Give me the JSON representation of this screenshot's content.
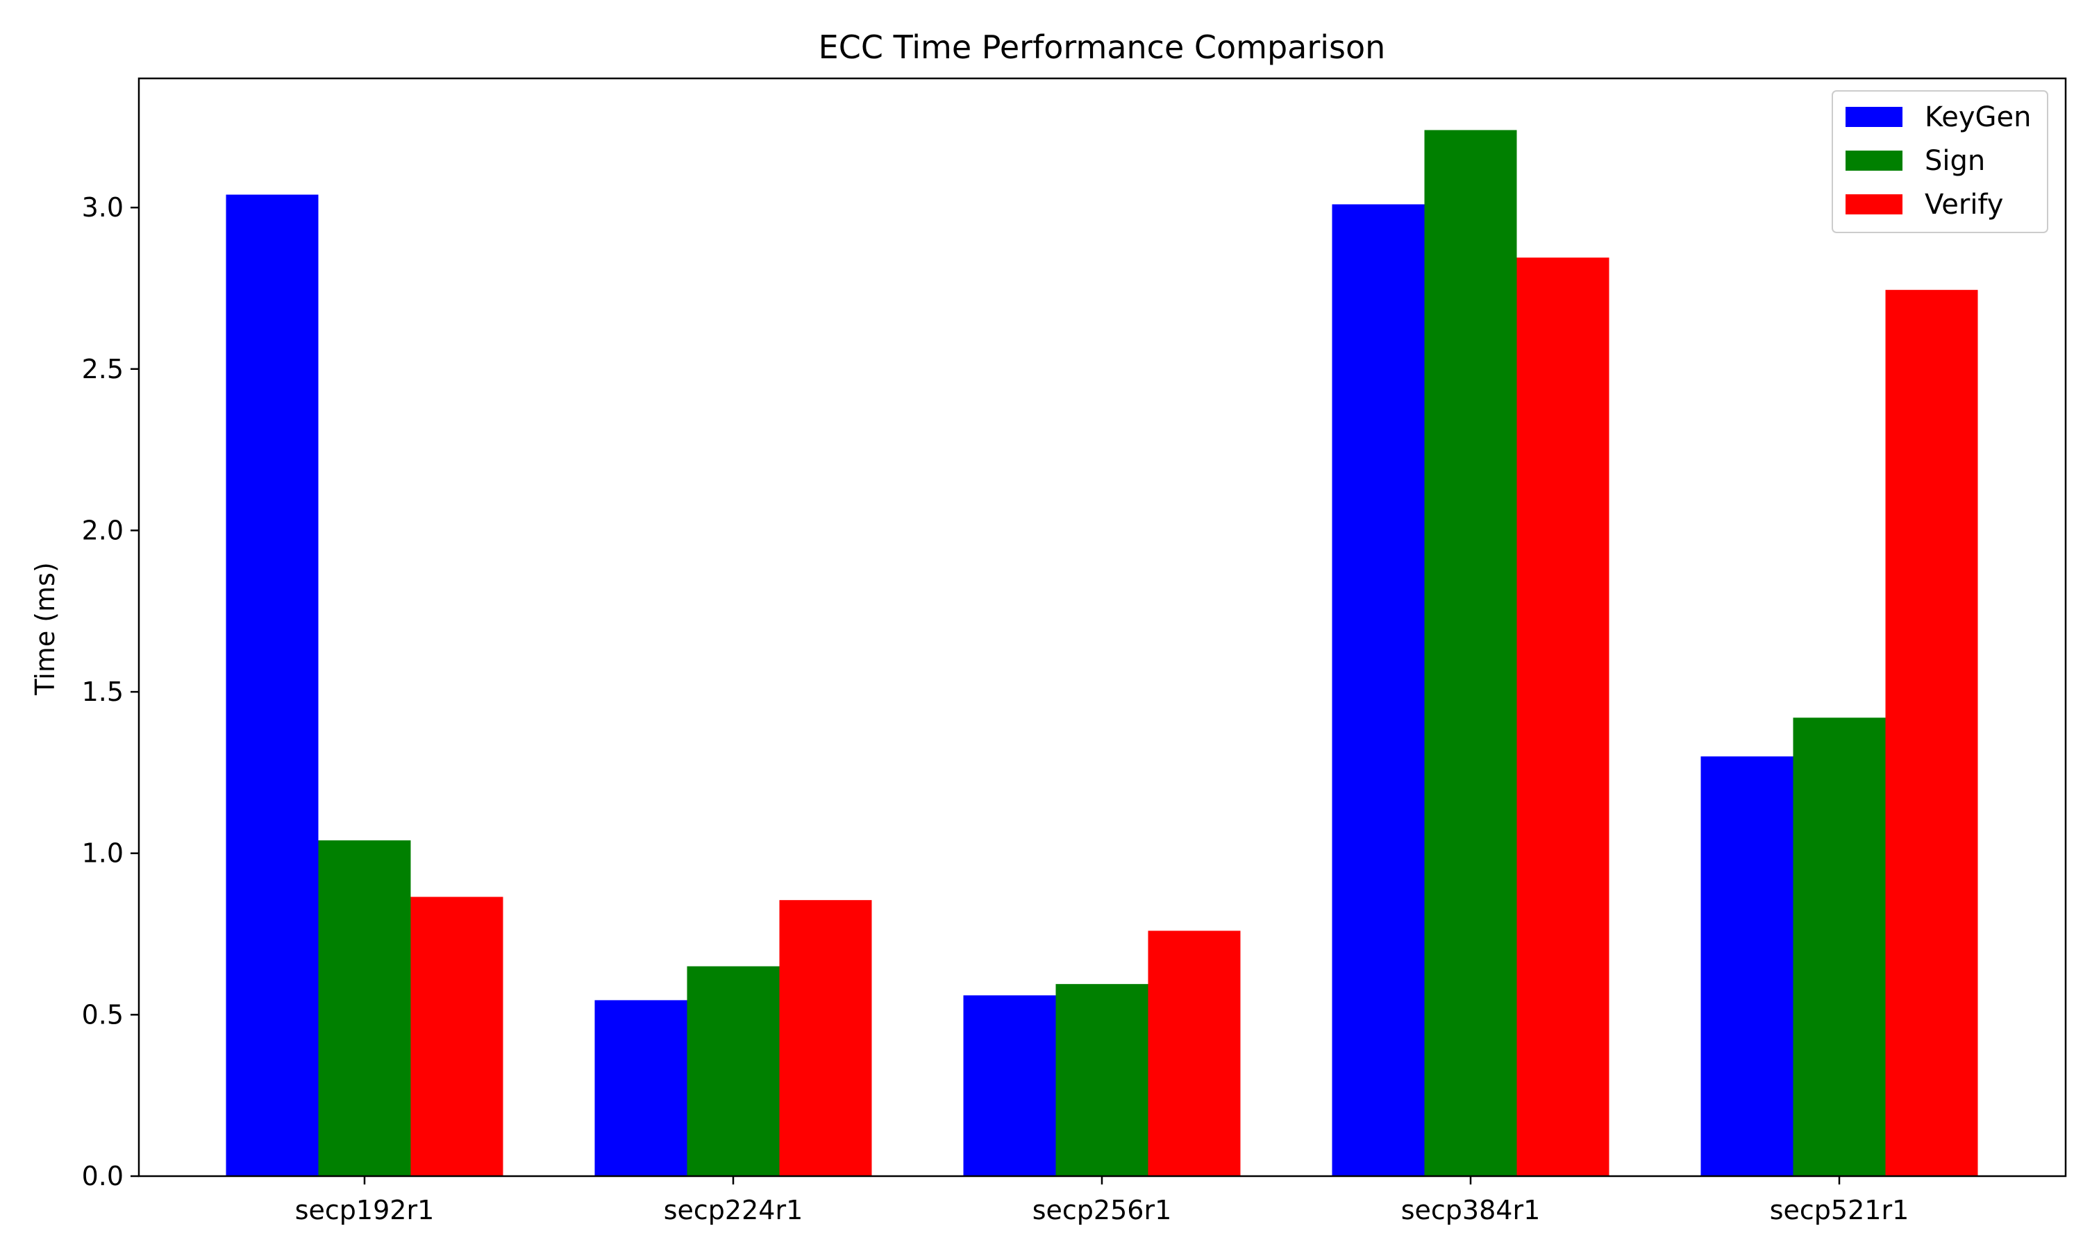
{
  "chart_data": {
    "type": "bar",
    "title": "ECC Time Performance Comparison",
    "xlabel": "",
    "ylabel": "Time (ms)",
    "categories": [
      "secp192r1",
      "secp224r1",
      "secp256r1",
      "secp384r1",
      "secp521r1"
    ],
    "series": [
      {
        "name": "KeyGen",
        "color": "#0000ff",
        "values": [
          3.04,
          0.545,
          0.56,
          3.01,
          1.3
        ]
      },
      {
        "name": "Sign",
        "color": "#008000",
        "values": [
          1.04,
          0.65,
          0.595,
          3.24,
          1.42
        ]
      },
      {
        "name": "Verify",
        "color": "#ff0000",
        "values": [
          0.865,
          0.855,
          0.76,
          2.845,
          2.745
        ]
      }
    ],
    "ylim": [
      0,
      3.4
    ],
    "yticks": [
      0.0,
      0.5,
      1.0,
      1.5,
      2.0,
      2.5,
      3.0
    ],
    "ytick_labels": [
      "0.0",
      "0.5",
      "1.0",
      "1.5",
      "2.0",
      "2.5",
      "3.0"
    ],
    "grid": false,
    "legend_position": "top-right"
  }
}
